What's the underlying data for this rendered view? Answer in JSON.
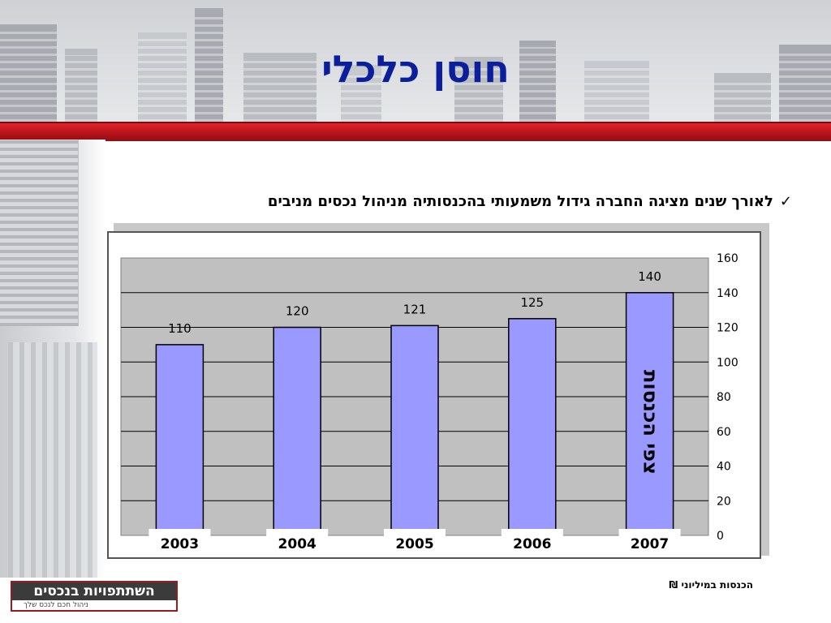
{
  "slide": {
    "title": "חוסן כלכלי",
    "bullet": "לאורך שנים מציגה החברה גידול משמעותי בהכנסותיה מניהול נכסים מניבים",
    "check_mark": "✓",
    "footnote": "הכנסות במיליוני ₪"
  },
  "logo": {
    "name": "השתתפויות בנכסים",
    "tagline": "ניהול חכם לנכס שלך"
  },
  "colors": {
    "title": "#0b1f9c",
    "red_band": "#c8161d",
    "bar_fill": "#9999ff",
    "plot_bg": "#c0c0c0"
  },
  "chart_data": {
    "type": "bar",
    "categories": [
      "2003",
      "2004",
      "2005",
      "2006",
      "2007"
    ],
    "values": [
      110,
      120,
      121,
      125,
      140
    ],
    "data_labels": [
      "110",
      "120",
      "121",
      "125",
      "140"
    ],
    "yticks": [
      "0",
      "20",
      "40",
      "60",
      "80",
      "100",
      "120",
      "140",
      "160"
    ],
    "ylim": [
      0,
      160
    ],
    "y_axis_position": "right",
    "grid": true,
    "annotation": "צפי הכנסות",
    "annotation_category": "2007"
  }
}
